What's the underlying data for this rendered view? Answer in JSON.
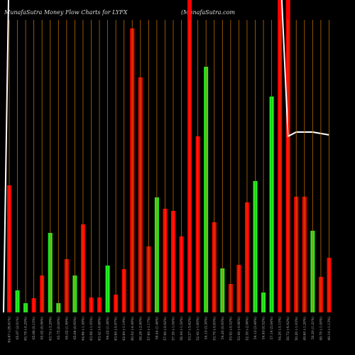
{
  "chart_data": {
    "type": "bar",
    "title": "MunafaSutra  Money Flow  Charts for LYFX",
    "subtitle": "(MunafaSutra.com",
    "categories": [
      "64.67 (-29.61%)",
      "65.97 (2.01%)",
      "65.78 (-0.29%)",
      "65.88 (0.15%)",
      "65.92 (0.06%)",
      "63.75 (-3.29%)",
      "63.75 (0.00%)",
      "65.02 (1.99%)",
      "65.64 (0.95%)",
      "64.66 (-1.49%)",
      "63.98 (-1.05%)",
      "63.42 (-0.88%)",
      "64.22 (1.26%)",
      "63.60 (-0.97%)",
      "62.84 (-1.19%)",
      "60.02 (-4.49%)",
      "58.28 (-2.90%)",
      "57.60 (-1.17%)",
      "58.44 (1.46%)",
      "57.90 (-0.92%)",
      "57.30 (-1.04%)",
      "56.44 (-1.50%)",
      "53.27 (-5.62%)",
      "52.42 (-1.60%)",
      "54.15 (3.30%)",
      "53.70 (-0.83%)",
      "54.20 (0.93%)",
      "53.92 (-0.52%)",
      "53.40 (-0.96%)",
      "52.30 (-2.06%)",
      "54.12 (3.48%)",
      "54.40 (0.52%)",
      "57.14 (5.04%)",
      "54.20 (-5.15%)",
      "50.72 (-6.42%)",
      "50.20 (-1.03%)",
      "49.60 (-1.20%)",
      "50.20 (1.21%)",
      "49.70 (-1.00%)",
      "49.14 (-1.13%)"
    ],
    "values": [
      179,
      31,
      13,
      20,
      52,
      112,
      13,
      75,
      52,
      124,
      21,
      21,
      66,
      25,
      61,
      400,
      331,
      93,
      162,
      146,
      143,
      107,
      460,
      248,
      346,
      127,
      62,
      40,
      67,
      155,
      185,
      28,
      304,
      460,
      460,
      163,
      163,
      115,
      50,
      77
    ],
    "colors": [
      "#ff0000",
      "#22ee22",
      "#22ee22",
      "#ff0000",
      "#ff0000",
      "#22ee22",
      "#22ee22",
      "#ff0000",
      "#22ee22",
      "#ff0000",
      "#ff0000",
      "#ff0000",
      "#22ee22",
      "#ff0000",
      "#ff0000",
      "#ff0000",
      "#ff0000",
      "#ff0000",
      "#22ee22",
      "#ff0000",
      "#ff0000",
      "#ff0000",
      "#ff0000",
      "#ff0000",
      "#22ee22",
      "#ff0000",
      "#22ee22",
      "#ff0000",
      "#ff0000",
      "#ff0000",
      "#22ee22",
      "#22ee22",
      "#22ee22",
      "#ff0000",
      "#ff0000",
      "#ff0000",
      "#ff0000",
      "#22ee22",
      "#ff0000",
      "#ff0000"
    ],
    "line_values": [
      null,
      null,
      null,
      null,
      null,
      null,
      null,
      null,
      null,
      null,
      null,
      null,
      null,
      null,
      null,
      null,
      null,
      null,
      null,
      null,
      null,
      null,
      null,
      null,
      null,
      null,
      null,
      null,
      null,
      null,
      null,
      null,
      null,
      500,
      248,
      254,
      254,
      254,
      252,
      250
    ],
    "line_color": "#ffffff",
    "grid_color": "#b86a00",
    "ylim": [
      0,
      440
    ]
  }
}
